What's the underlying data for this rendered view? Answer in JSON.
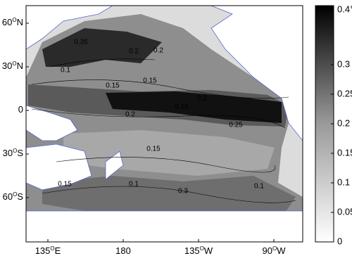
{
  "map": {
    "x_ticks": [
      {
        "number": "135",
        "sup": "O",
        "hemi": "E",
        "lon": 135
      },
      {
        "number": "180",
        "lon": 180
      },
      {
        "number": "135",
        "sup": "O",
        "hemi": "W",
        "lon": 225
      },
      {
        "number": "90",
        "sup": "O",
        "hemi": "W",
        "lon": 270
      }
    ],
    "y_ticks": [
      {
        "number": "60",
        "sup": "O",
        "hemi": "N",
        "lat": 60
      },
      {
        "number": "30",
        "sup": "O",
        "hemi": "N",
        "lat": 30
      },
      {
        "number": "0",
        "lat": 0
      },
      {
        "number": "30",
        "sup": "O",
        "hemi": "S",
        "lat": -30
      },
      {
        "number": "60",
        "sup": "O",
        "hemi": "S",
        "lat": -60
      }
    ],
    "colorbar": {
      "range": [
        0,
        0.4
      ],
      "ticks": [
        {
          "value": 0.4,
          "label": "0.4℃"
        },
        0.3,
        0.25,
        0.2,
        0.15,
        0.1,
        0.05,
        0
      ]
    },
    "contour_labels": [
      "0.35",
      "0.1",
      "0.2",
      "0.2",
      "0.15",
      "0.15",
      "0.2",
      "0.2",
      "0.15",
      "0.25",
      "0.15",
      "0.15",
      "0.1",
      "0.3",
      "0.1"
    ]
  }
}
